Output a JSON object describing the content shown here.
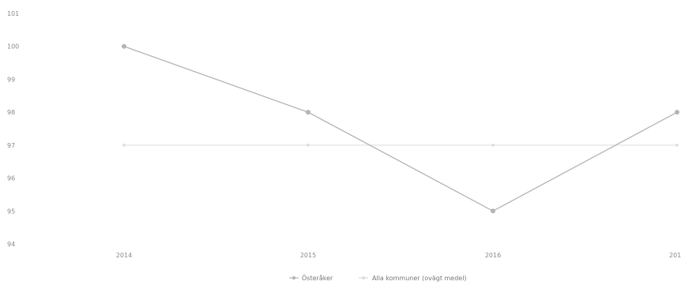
{
  "chart_data": {
    "type": "line",
    "title": "",
    "xlabel": "",
    "ylabel": "",
    "x": [
      "2014",
      "2015",
      "2016",
      "201"
    ],
    "ylim": [
      94,
      101
    ],
    "yticks": [
      "101",
      "100",
      "99",
      "98",
      "97",
      "96",
      "95",
      "94"
    ],
    "grid": false,
    "legend_position": "bottom",
    "series": [
      {
        "name": "Österåker",
        "values": [
          100,
          98,
          95,
          98
        ],
        "color": "#b4b4b4"
      },
      {
        "name": "Alla kommuner (ovägt medel)",
        "values": [
          97,
          97,
          97,
          97
        ],
        "color": "#dcdcdc"
      }
    ]
  }
}
